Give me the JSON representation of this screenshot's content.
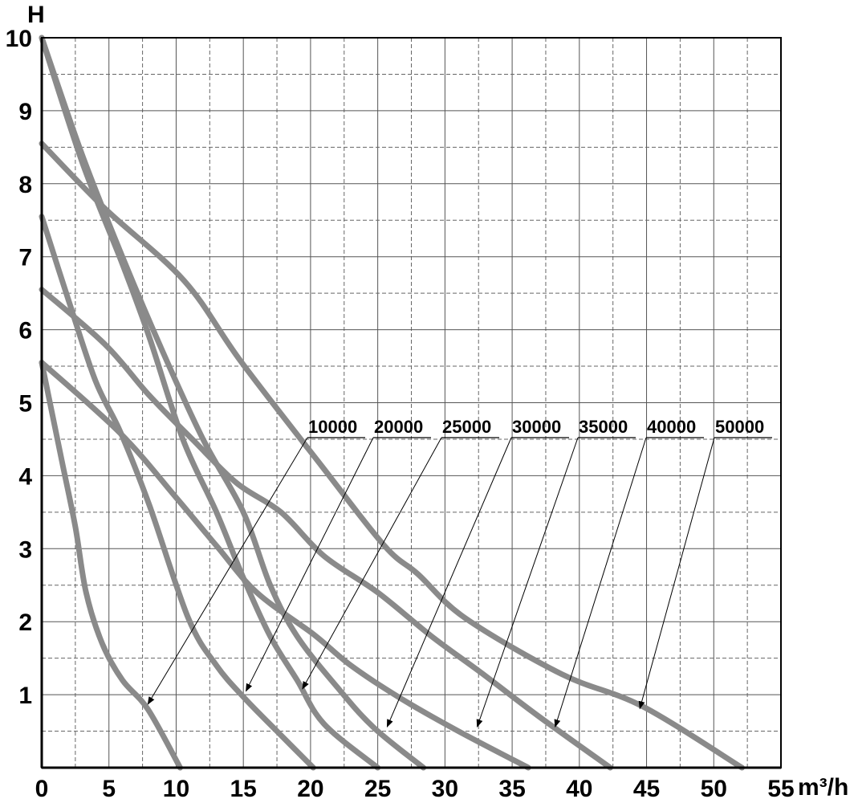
{
  "chart_data": {
    "type": "line",
    "title": "",
    "xlabel": "m³/h",
    "ylabel": "H",
    "xlim": [
      0,
      55
    ],
    "ylim": [
      0,
      10
    ],
    "x_ticks": [
      "0",
      "5",
      "10",
      "15",
      "20",
      "25",
      "30",
      "35",
      "40",
      "45",
      "50",
      "55"
    ],
    "y_ticks": [
      "1",
      "2",
      "3",
      "4",
      "5",
      "6",
      "7",
      "8",
      "9",
      "10"
    ],
    "grid": {
      "major_solid": true,
      "minor_dashed": true
    },
    "curve_color": "#8a8a8a",
    "series": [
      {
        "name": "10000",
        "points": [
          [
            0,
            5.55
          ],
          [
            1.5,
            4.2
          ],
          [
            2.5,
            3.3
          ],
          [
            3.3,
            2.4
          ],
          [
            4.5,
            1.7
          ],
          [
            6,
            1.2
          ],
          [
            7.9,
            0.8
          ],
          [
            10.3,
            0
          ]
        ],
        "arrow_to": [
          7.9,
          0.87
        ]
      },
      {
        "name": "20000",
        "points": [
          [
            0,
            7.55
          ],
          [
            2,
            6.4
          ],
          [
            4,
            5.3
          ],
          [
            5.85,
            4.6
          ],
          [
            8,
            3.6
          ],
          [
            10.9,
            2.05
          ],
          [
            13,
            1.4
          ],
          [
            15.1,
            0.95
          ],
          [
            17.5,
            0.5
          ],
          [
            20.2,
            0
          ]
        ],
        "arrow_to": [
          15.2,
          1.05
        ]
      },
      {
        "name": "25000",
        "points": [
          [
            0,
            10
          ],
          [
            3,
            8.3
          ],
          [
            6,
            6.9
          ],
          [
            8,
            5.9
          ],
          [
            10.5,
            4.5
          ],
          [
            13,
            3.5
          ],
          [
            15,
            2.6
          ],
          [
            17,
            1.8
          ],
          [
            19,
            1.2
          ],
          [
            21,
            0.6
          ],
          [
            25,
            0
          ]
        ],
        "arrow_to": [
          19.4,
          1.08
        ]
      },
      {
        "name": "30000",
        "points": [
          [
            0,
            10
          ],
          [
            3,
            8.4
          ],
          [
            6,
            7
          ],
          [
            9,
            5.7
          ],
          [
            12,
            4.5
          ],
          [
            15,
            3.5
          ],
          [
            17,
            2.5
          ],
          [
            19,
            1.8
          ],
          [
            22,
            1.1
          ],
          [
            24.7,
            0.55
          ],
          [
            28.4,
            0
          ]
        ],
        "arrow_to": [
          25.7,
          0.56
        ]
      },
      {
        "name": "35000",
        "points": [
          [
            0,
            5.55
          ],
          [
            5.85,
            4.58
          ],
          [
            10,
            3.7
          ],
          [
            13,
            3.04
          ],
          [
            16,
            2.4
          ],
          [
            20.2,
            1.83
          ],
          [
            23,
            1.4
          ],
          [
            26.7,
            0.95
          ],
          [
            31,
            0.5
          ],
          [
            36.2,
            0
          ]
        ],
        "arrow_to": [
          32.4,
          0.56
        ]
      },
      {
        "name": "40000",
        "points": [
          [
            0,
            6.55
          ],
          [
            4.7,
            5.8
          ],
          [
            8,
            5.1
          ],
          [
            11.2,
            4.5
          ],
          [
            14.5,
            3.9
          ],
          [
            17.8,
            3.5
          ],
          [
            21,
            2.9
          ],
          [
            25,
            2.4
          ],
          [
            29,
            1.8
          ],
          [
            32.7,
            1.3
          ],
          [
            37,
            0.7
          ],
          [
            42.3,
            0
          ]
        ],
        "arrow_to": [
          38.2,
          0.56
        ]
      },
      {
        "name": "50000",
        "points": [
          [
            0,
            8.55
          ],
          [
            4.7,
            7.66
          ],
          [
            10.6,
            6.67
          ],
          [
            14.8,
            5.57
          ],
          [
            20.8,
            4.14
          ],
          [
            25.5,
            3.04
          ],
          [
            28,
            2.65
          ],
          [
            31.5,
            2.05
          ],
          [
            38.7,
            1.28
          ],
          [
            44.7,
            0.84
          ],
          [
            52.1,
            0
          ]
        ],
        "arrow_to": [
          44.5,
          0.81
        ]
      }
    ]
  }
}
